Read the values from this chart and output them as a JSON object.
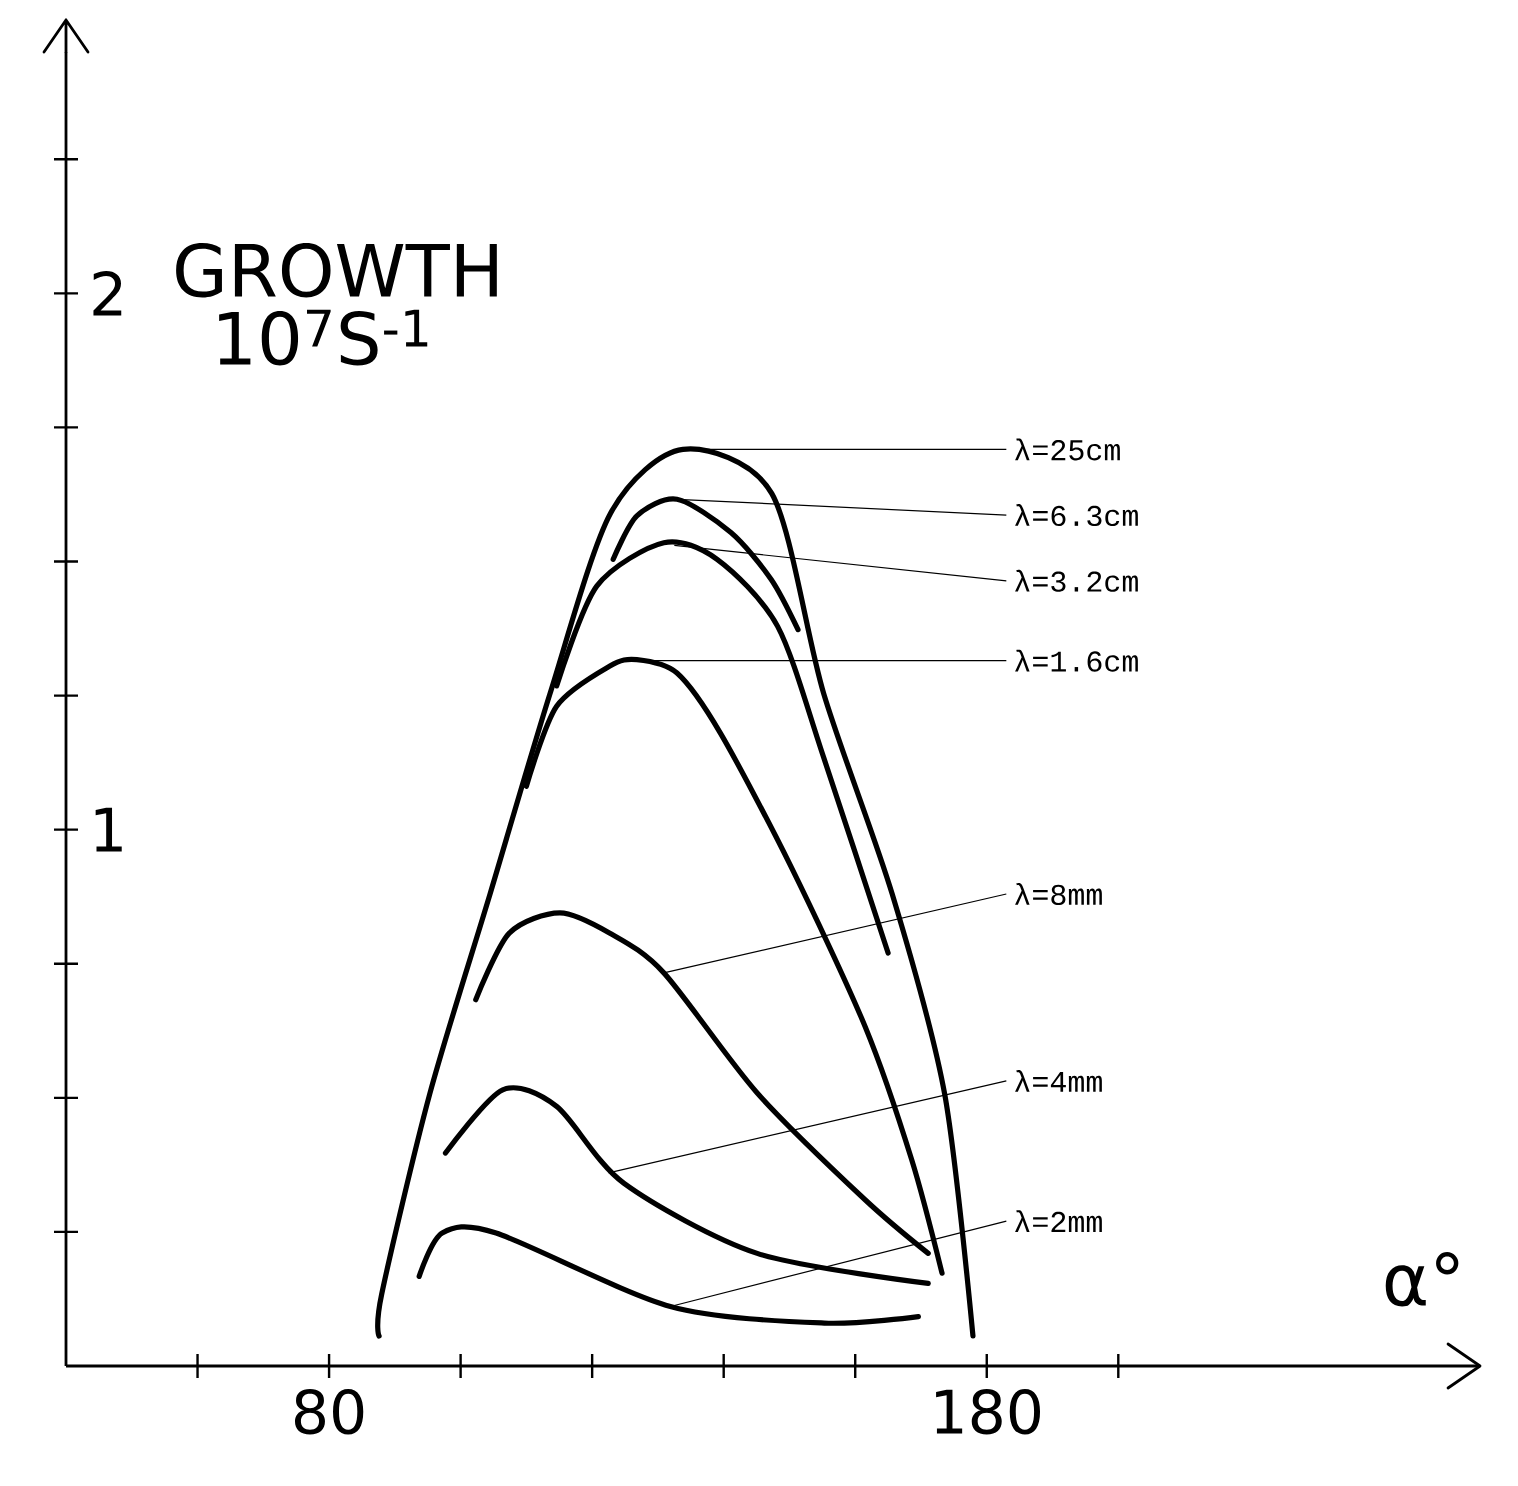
{
  "chart_data": {
    "type": "line",
    "ylabel": "GROWTH 10$^{7}$S$^{-1}$",
    "xlabel": "α°",
    "xlim": [
      40,
      255
    ],
    "ylim": [
      0,
      2.45
    ],
    "xticks": [
      {
        "value": 60,
        "label": null
      },
      80,
      {
        "value": 100,
        "label": null
      },
      {
        "value": 120,
        "label": null
      },
      {
        "value": 140,
        "label": null
      },
      {
        "value": 160,
        "label": null
      },
      180,
      {
        "value": 200,
        "label": null
      }
    ],
    "yticks": [
      {
        "value": 0.25,
        "label": null
      },
      {
        "value": 0.5,
        "label": null
      },
      {
        "value": 0.75,
        "label": null
      },
      1,
      {
        "value": 1.25,
        "label": null
      },
      {
        "value": 1.5,
        "label": null
      },
      {
        "value": 1.75,
        "label": null
      },
      2,
      {
        "value": 2.25,
        "label": null
      }
    ],
    "grid": false,
    "marker": "none",
    "line_style": "solid",
    "series": [
      {
        "color": "#000000",
        "x": [
          87.6,
          88.0,
          95.3,
          104.5,
          113.6,
          122.8,
          133.8,
          147.3,
          155.2,
          165.6,
          173.6,
          177.9
        ],
        "values": [
          0.056,
          0.134,
          0.507,
          0.881,
          1.254,
          1.59,
          1.709,
          1.627,
          1.254,
          0.881,
          0.507,
          0.056
        ]
      },
      {
        "color": "#000000",
        "x": [
          123.2,
          126.8,
          132.9,
          141.1,
          147.2,
          151.3
        ],
        "values": [
          1.504,
          1.585,
          1.616,
          1.554,
          1.467,
          1.373
        ]
      },
      {
        "color": "#000000",
        "x": [
          114.6,
          120.7,
          130.9,
          139.0,
          148.2,
          155.3,
          165.0
        ],
        "values": [
          1.268,
          1.454,
          1.535,
          1.504,
          1.379,
          1.131,
          0.77
        ]
      },
      {
        "color": "#000000",
        "x": [
          110.0,
          114.6,
          122.7,
          126.8,
          132.9,
          139.5,
          150.2,
          161.5,
          168.6,
          173.2
        ],
        "values": [
          1.081,
          1.23,
          1.305,
          1.317,
          1.292,
          1.18,
          0.932,
          0.633,
          0.384,
          0.173
        ]
      },
      {
        "color": "#000000",
        "x": [
          102.3,
          107.4,
          115.1,
          122.7,
          130.9,
          145.1,
          161.5,
          171.1
        ],
        "values": [
          0.683,
          0.807,
          0.845,
          0.807,
          0.733,
          0.509,
          0.31,
          0.21
        ]
      },
      {
        "color": "#000000",
        "x": [
          97.7,
          106.4,
          114.6,
          124.8,
          145.1,
          171.1
        ],
        "values": [
          0.397,
          0.515,
          0.484,
          0.341,
          0.21,
          0.154
        ]
      },
      {
        "color": "#000000",
        "x": [
          93.7,
          97.2,
          105.4,
          131.9,
          155.3,
          169.6
        ],
        "values": [
          0.167,
          0.248,
          0.248,
          0.111,
          0.08,
          0.092
        ]
      }
    ],
    "annotations": [
      {
        "text": "λ=25cm",
        "x": 133.8,
        "y": 1.709
      },
      {
        "text": "λ=6.3cm",
        "x": 132.9,
        "y": 1.616
      },
      {
        "text": "λ=3.2cm",
        "x": 132.5,
        "y": 1.53
      },
      {
        "text": "λ=1.6cm",
        "x": 128.5,
        "y": 1.315
      },
      {
        "text": "λ=8mm",
        "x": 130.9,
        "y": 0.733
      },
      {
        "text": "λ=4mm",
        "x": 122.5,
        "y": 0.36
      },
      {
        "text": "λ=2mm",
        "x": 131.9,
        "y": 0.111
      }
    ]
  }
}
